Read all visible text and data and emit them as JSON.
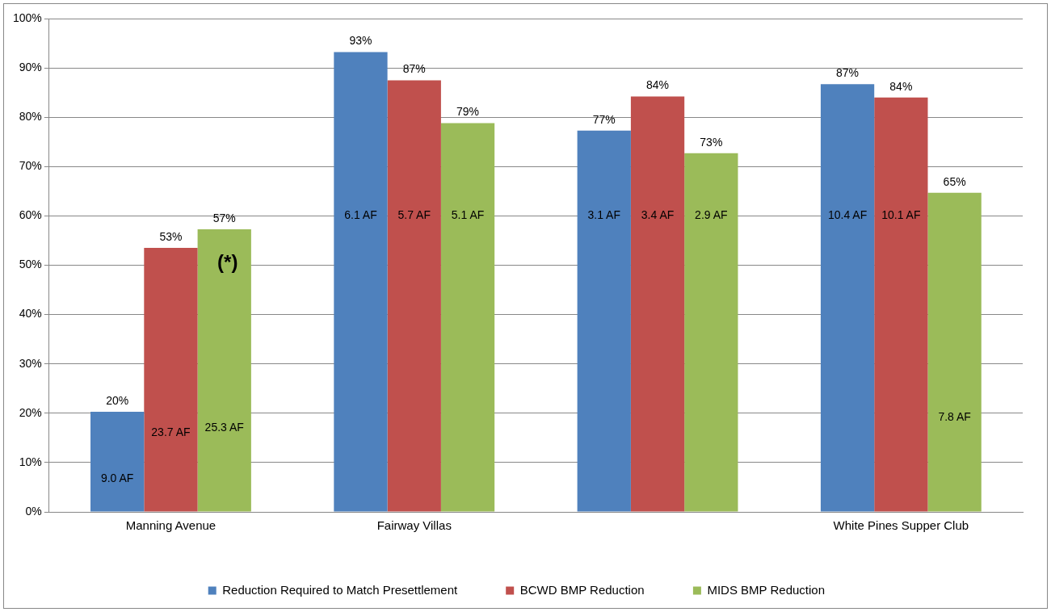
{
  "chart_data": {
    "type": "bar",
    "categories": [
      "Manning Avenue",
      "Fairway Villas",
      null,
      "White Pines Supper Club"
    ],
    "series": [
      {
        "name": "Reduction Required to Match Presettlement",
        "color": "#4f81bd",
        "values": [
          20.3,
          93.2,
          77.3,
          86.7
        ],
        "value_labels": [
          "20%",
          "93%",
          "77%",
          "87%"
        ]
      },
      {
        "name": "BCWD BMP Reduction",
        "color": "#c0504d",
        "values": [
          53.5,
          87.5,
          84.2,
          84.0
        ],
        "value_labels": [
          "53%",
          "87%",
          "84%",
          "84%"
        ]
      },
      {
        "name": "MIDS BMP Reduction",
        "color": "#9bbb59",
        "values": [
          57.3,
          78.8,
          72.7,
          64.7
        ],
        "value_labels": [
          "57%",
          "79%",
          "73%",
          "65%"
        ]
      }
    ],
    "annotations": [
      "9.0 AF",
      "23.7 AF",
      "25.3 AF",
      "6.1 AF",
      "5.7 AF",
      "5.1 AF",
      "3.1 AF",
      "3.4 AF",
      "2.9 AF",
      "10.4 AF",
      "10.1 AF",
      "7.8 AF",
      "(*)"
    ],
    "ylim": [
      0,
      100
    ],
    "yticks": [
      {
        "value": 0,
        "label": "0%"
      },
      {
        "value": 10,
        "label": "10%"
      },
      {
        "value": 20,
        "label": "20%"
      },
      {
        "value": 30,
        "label": "30%"
      },
      {
        "value": 40,
        "label": "40%"
      },
      {
        "value": 50,
        "label": "50%"
      },
      {
        "value": 60,
        "label": "60%"
      },
      {
        "value": 70,
        "label": "70%"
      },
      {
        "value": 80,
        "label": "80%"
      },
      {
        "value": 90,
        "label": "90%"
      },
      {
        "value": 100,
        "label": "100%"
      }
    ],
    "grid": "y",
    "legend": "bottom"
  }
}
